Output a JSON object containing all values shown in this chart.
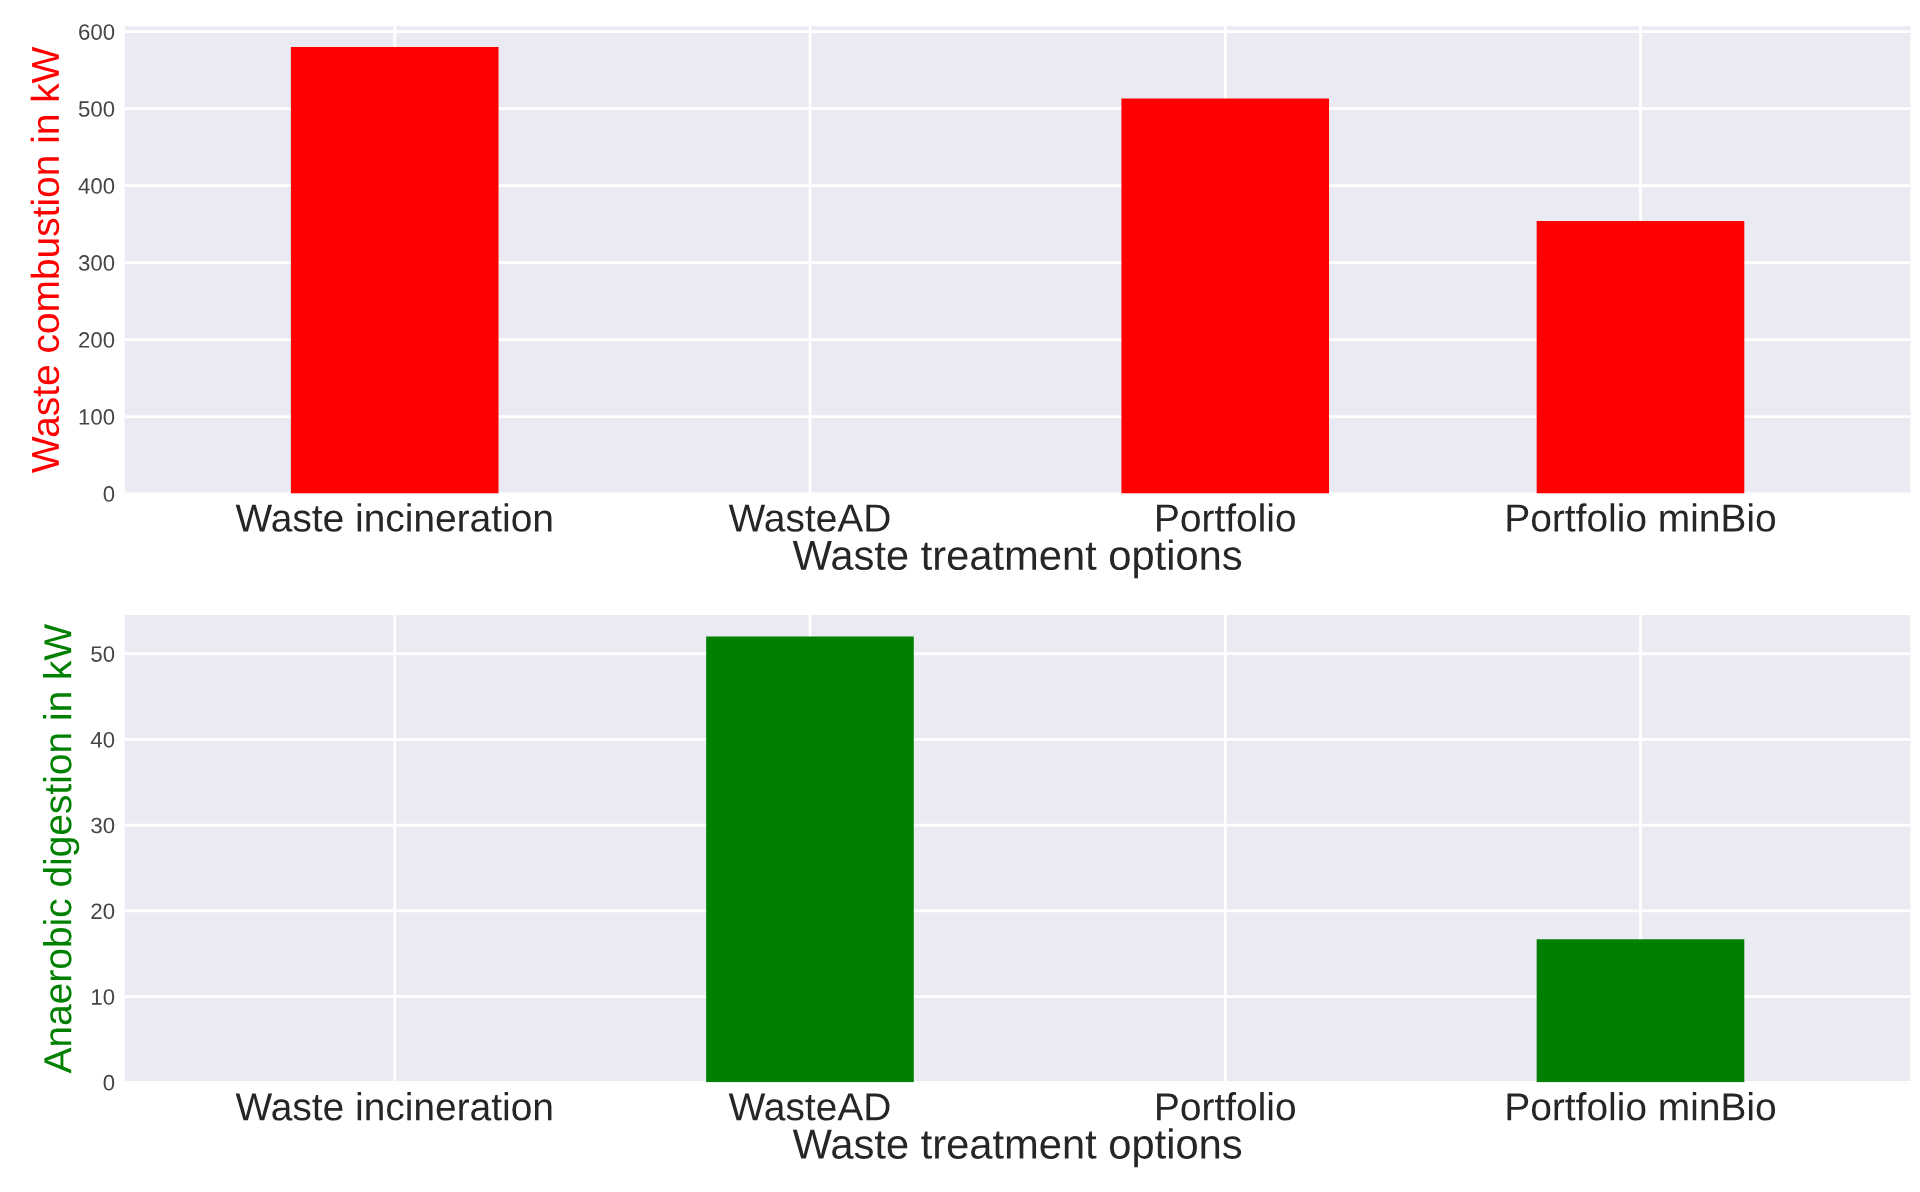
{
  "chart_data": [
    {
      "type": "bar",
      "categories": [
        "Waste incineration",
        "WasteAD",
        "Portfolio",
        "Portfolio minBio"
      ],
      "values": [
        580,
        0,
        513,
        354
      ],
      "color": "#ff0000",
      "xlabel": "Waste treatment options",
      "ylabel": "Waste combustion in kW",
      "ylim": [
        0,
        607
      ],
      "yticks": [
        0,
        100,
        200,
        300,
        400,
        500,
        600
      ],
      "grid": true
    },
    {
      "type": "bar",
      "categories": [
        "Waste incineration",
        "WasteAD",
        "Portfolio",
        "Portfolio minBio"
      ],
      "values": [
        0,
        52.0,
        0,
        16.7
      ],
      "color": "#008000",
      "xlabel": "Waste treatment options",
      "ylabel": "Anaerobic digestion in kW",
      "ylim": [
        0,
        54.5
      ],
      "yticks": [
        0,
        10,
        20,
        30,
        40,
        50
      ],
      "grid": true
    }
  ]
}
